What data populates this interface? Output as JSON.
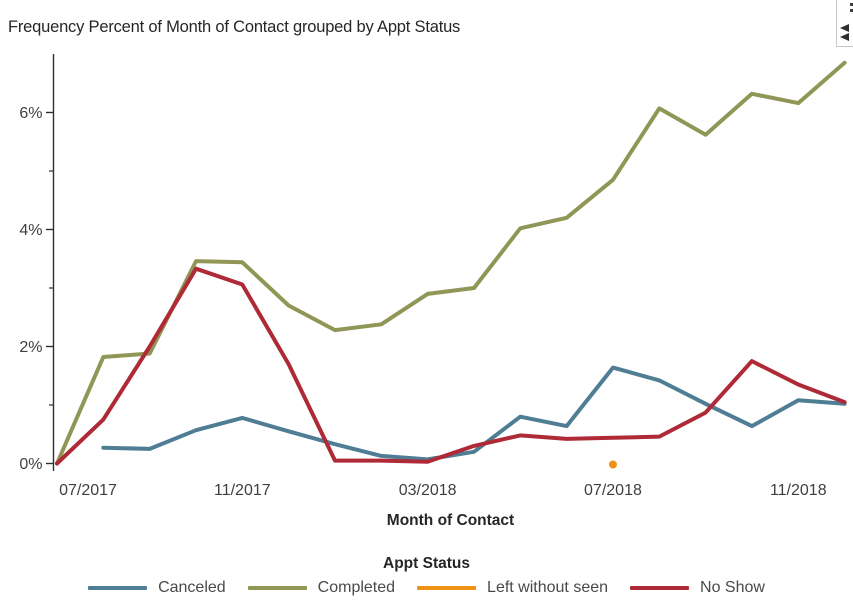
{
  "header": {
    "title": "Frequency Percent of Month of Contact grouped by Appt Status"
  },
  "icons": {
    "corner_menu": "vertical-ellipsis",
    "corner_expand": "double-left-arrows"
  },
  "chart_data": {
    "type": "line",
    "title": "Frequency Percent of Month of Contact grouped by Appt Status",
    "xlabel": "Month of Contact",
    "ylabel": "Frequency Percent",
    "legend_title": "Appt Status",
    "legend_position": "bottom",
    "grid": false,
    "ylim": [
      0,
      7
    ],
    "y_ticks": [
      0,
      2,
      4,
      6
    ],
    "y_tick_labels": [
      "0%",
      "2%",
      "4%",
      "6%"
    ],
    "y_minor_ticks": [
      1,
      3,
      5
    ],
    "categories": [
      "07/2017",
      "08/2017",
      "09/2017",
      "10/2017",
      "11/2017",
      "12/2017",
      "01/2018",
      "02/2018",
      "03/2018",
      "04/2018",
      "05/2018",
      "06/2018",
      "07/2018",
      "08/2018",
      "09/2018",
      "10/2018",
      "11/2018",
      "12/2018"
    ],
    "x_tick_indices": [
      0,
      4,
      8,
      12,
      16
    ],
    "x_tick_labels": [
      "07/2017",
      "11/2017",
      "03/2018",
      "07/2018",
      "11/2018"
    ],
    "series": [
      {
        "name": "Canceled",
        "color": "#4e7d94",
        "values": [
          null,
          0.27,
          0.25,
          0.57,
          0.78,
          0.55,
          0.33,
          0.13,
          0.07,
          0.2,
          0.8,
          0.64,
          1.64,
          1.42,
          1.02,
          0.64,
          1.08,
          1.02
        ]
      },
      {
        "name": "Completed",
        "color": "#909655",
        "values": [
          0,
          1.82,
          1.88,
          3.46,
          3.44,
          2.7,
          2.28,
          2.38,
          2.9,
          3.0,
          4.02,
          4.2,
          4.85,
          6.07,
          5.62,
          6.32,
          6.16,
          6.85
        ]
      },
      {
        "name": "Left without seen",
        "color": "#ee9213",
        "values": [
          null,
          null,
          null,
          null,
          null,
          null,
          null,
          null,
          null,
          null,
          null,
          null,
          0,
          null,
          null,
          null,
          null,
          null
        ]
      },
      {
        "name": "No Show",
        "color": "#ae2a36",
        "values": [
          0,
          0.75,
          2.0,
          3.33,
          3.06,
          1.7,
          0.05,
          0.05,
          0.03,
          0.3,
          0.48,
          0.42,
          0.44,
          0.46,
          0.87,
          1.75,
          1.35,
          1.05
        ]
      }
    ]
  }
}
